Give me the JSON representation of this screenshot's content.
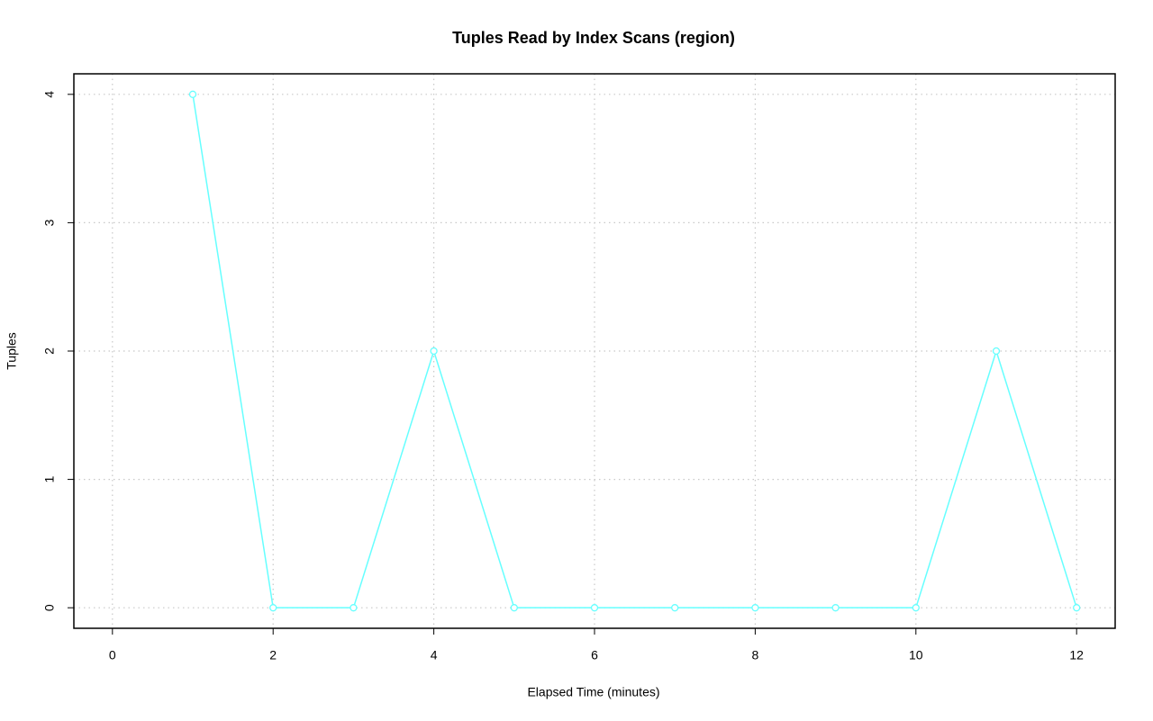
{
  "chart_data": {
    "type": "line",
    "title": "Tuples Read by Index Scans (region)",
    "x_label": "Elapsed Time (minutes)",
    "y_label": "Tuples",
    "x": [
      1,
      2,
      3,
      4,
      5,
      6,
      7,
      8,
      9,
      10,
      11,
      12
    ],
    "series": [
      {
        "name": "region",
        "color": "#66ffff",
        "values": [
          4,
          0,
          0,
          2,
          0,
          0,
          0,
          0,
          0,
          0,
          2,
          0
        ]
      }
    ],
    "xlim": [
      -0.48,
      12.48
    ],
    "xticks": [
      0,
      2,
      4,
      6,
      8,
      10,
      12
    ],
    "ylim": [
      -0.16,
      4.16
    ],
    "yticks": [
      0,
      1,
      2,
      3,
      4
    ],
    "grid": true
  }
}
